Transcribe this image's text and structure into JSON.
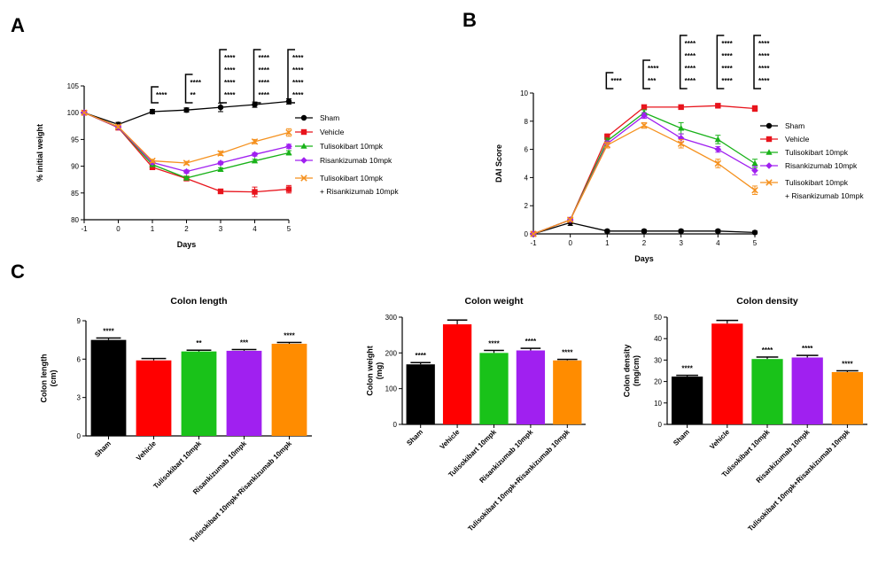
{
  "panels": {
    "a": "A",
    "b": "B",
    "c": "C"
  },
  "colors": {
    "Sham": "#000000",
    "Vehicle": "#e8141c",
    "Tulisokibart": "#19b219",
    "Risankizumab": "#a020f0",
    "Combo": "#f5911e"
  },
  "chart_data": [
    {
      "type": "line",
      "panel": "A",
      "xlabel": "Days",
      "ylabel": "% initial weight",
      "xlim": [
        -1,
        5
      ],
      "ylim": [
        80,
        105
      ],
      "xticks": [
        -1,
        0,
        1,
        2,
        3,
        4,
        5
      ],
      "yticks": [
        80,
        85,
        90,
        95,
        100,
        105
      ],
      "legend_position": "right",
      "x": [
        -1,
        0,
        1,
        2,
        3,
        4,
        5
      ],
      "series": [
        {
          "name": "Sham",
          "color": "#000000",
          "marker": "circle",
          "values": [
            100,
            97.8,
            100.2,
            100.5,
            101,
            101.5,
            102.1
          ],
          "errors": [
            0,
            0.4,
            0.4,
            0.4,
            0.8,
            0.5,
            0.5
          ]
        },
        {
          "name": "Vehicle",
          "color": "#e8141c",
          "marker": "square",
          "values": [
            100,
            97.2,
            89.8,
            87.7,
            85.3,
            85.2,
            85.7
          ],
          "errors": [
            0,
            0.3,
            0.3,
            0.3,
            0.4,
            0.9,
            0.7
          ]
        },
        {
          "name": "Tulisokibart 10mpk",
          "color": "#19b219",
          "marker": "triangle",
          "values": [
            100,
            97.3,
            90.3,
            87.8,
            89.4,
            91,
            92.5
          ],
          "errors": [
            0,
            0.3,
            0.3,
            0.3,
            0.3,
            0.3,
            0.4
          ]
        },
        {
          "name": "Risankizumab 10mpk",
          "color": "#a020f0",
          "marker": "diamond",
          "values": [
            100,
            97.3,
            90.7,
            89,
            90.6,
            92.2,
            93.7
          ],
          "errors": [
            0,
            0.3,
            0.3,
            0.3,
            0.3,
            0.3,
            0.4
          ]
        },
        {
          "name": "Tulisokibart 10mpk\n+ Risankizumab 10mpk",
          "color": "#f5911e",
          "marker": "cross",
          "values": [
            100,
            97.4,
            91,
            90.6,
            92.4,
            94.6,
            96.3
          ],
          "errors": [
            0,
            0.3,
            0.3,
            0.3,
            0.4,
            0.4,
            0.7
          ]
        }
      ],
      "significance": [
        {
          "day": 1,
          "marks": [
            {
              "text": "****",
              "color": "#000000"
            }
          ]
        },
        {
          "day": 2,
          "marks": [
            {
              "text": "****",
              "color": "#000000"
            },
            {
              "text": "**",
              "color": "#f5911e"
            }
          ]
        },
        {
          "day": 3,
          "marks": [
            {
              "text": "****",
              "color": "#000000"
            },
            {
              "text": "****",
              "color": "#19b219"
            },
            {
              "text": "****",
              "color": "#a020f0"
            },
            {
              "text": "****",
              "color": "#f5911e"
            }
          ]
        },
        {
          "day": 4,
          "marks": [
            {
              "text": "****",
              "color": "#000000"
            },
            {
              "text": "****",
              "color": "#19b219"
            },
            {
              "text": "****",
              "color": "#a020f0"
            },
            {
              "text": "****",
              "color": "#f5911e"
            }
          ]
        },
        {
          "day": 5,
          "marks": [
            {
              "text": "****",
              "color": "#000000"
            },
            {
              "text": "****",
              "color": "#19b219"
            },
            {
              "text": "****",
              "color": "#a020f0"
            },
            {
              "text": "****",
              "color": "#f5911e"
            }
          ]
        }
      ]
    },
    {
      "type": "line",
      "panel": "B",
      "xlabel": "Days",
      "ylabel": "DAI Score",
      "xlim": [
        -1,
        5
      ],
      "ylim": [
        0,
        10
      ],
      "xticks": [
        -1,
        0,
        1,
        2,
        3,
        4,
        5
      ],
      "yticks": [
        0,
        2,
        4,
        6,
        8,
        10
      ],
      "legend_position": "right",
      "x": [
        -1,
        0,
        1,
        2,
        3,
        4,
        5
      ],
      "series": [
        {
          "name": "Sham",
          "color": "#000000",
          "marker": "circle",
          "values": [
            0,
            0.8,
            0.2,
            0.2,
            0.2,
            0.2,
            0.1
          ],
          "errors": [
            0,
            0.2,
            0.1,
            0.1,
            0.1,
            0.1,
            0.1
          ]
        },
        {
          "name": "Vehicle",
          "color": "#e8141c",
          "marker": "square",
          "values": [
            0,
            1,
            6.9,
            9,
            9,
            9.1,
            8.9
          ],
          "errors": [
            0,
            0.1,
            0.2,
            0.1,
            0.1,
            0.1,
            0.2
          ]
        },
        {
          "name": "Tulisokibart 10mpk",
          "color": "#19b219",
          "marker": "triangle",
          "values": [
            0,
            1,
            6.6,
            8.6,
            7.5,
            6.7,
            5
          ],
          "errors": [
            0,
            0.1,
            0.2,
            0.2,
            0.4,
            0.3,
            0.3
          ]
        },
        {
          "name": "Risankizumab 10mpk",
          "color": "#a020f0",
          "marker": "diamond",
          "values": [
            0,
            1,
            6.4,
            8.4,
            6.8,
            6,
            4.5
          ],
          "errors": [
            0,
            0.1,
            0.2,
            0.2,
            0.3,
            0.2,
            0.3
          ]
        },
        {
          "name": "Tulisokibart 10mpk\n+ Risankizumab 10mpk",
          "color": "#f5911e",
          "marker": "cross",
          "values": [
            0,
            1,
            6.3,
            7.7,
            6.4,
            5,
            3.1
          ],
          "errors": [
            0,
            0.1,
            0.2,
            0.2,
            0.3,
            0.3,
            0.3
          ]
        }
      ],
      "significance": [
        {
          "day": 1,
          "marks": [
            {
              "text": "****",
              "color": "#000000"
            }
          ]
        },
        {
          "day": 2,
          "marks": [
            {
              "text": "****",
              "color": "#000000"
            },
            {
              "text": "***",
              "color": "#f5911e"
            }
          ]
        },
        {
          "day": 3,
          "marks": [
            {
              "text": "****",
              "color": "#000000"
            },
            {
              "text": "****",
              "color": "#19b219"
            },
            {
              "text": "****",
              "color": "#a020f0"
            },
            {
              "text": "****",
              "color": "#f5911e"
            }
          ]
        },
        {
          "day": 4,
          "marks": [
            {
              "text": "****",
              "color": "#000000"
            },
            {
              "text": "****",
              "color": "#19b219"
            },
            {
              "text": "****",
              "color": "#a020f0"
            },
            {
              "text": "****",
              "color": "#f5911e"
            }
          ]
        },
        {
          "day": 5,
          "marks": [
            {
              "text": "****",
              "color": "#000000"
            },
            {
              "text": "****",
              "color": "#19b219"
            },
            {
              "text": "****",
              "color": "#a020f0"
            },
            {
              "text": "****",
              "color": "#f5911e"
            }
          ]
        }
      ]
    },
    {
      "type": "bar",
      "panel": "C",
      "title": "Colon length",
      "ylabel": "Colon length\n(cm)",
      "ylim": [
        0,
        9
      ],
      "yticks": [
        0,
        3,
        6,
        9
      ],
      "categories": [
        "Sham",
        "Vehicle",
        "Tulisokibart 10mpk",
        "Risankizumab 10mpk",
        "Tulisokibart 10mpk+Risankizumab 10mpk"
      ],
      "values": [
        7.5,
        5.9,
        6.6,
        6.65,
        7.2
      ],
      "errors": [
        0.15,
        0.15,
        0.1,
        0.1,
        0.1
      ],
      "labels": [
        "****",
        "",
        "**",
        "***",
        "****"
      ],
      "colors": [
        "#000000",
        "#ff0000",
        "#19c219",
        "#a020f0",
        "#ff8c00"
      ]
    },
    {
      "type": "bar",
      "panel": "C",
      "title": "Colon weight",
      "ylabel": "Colon weight\n(mg)",
      "ylim": [
        0,
        300
      ],
      "yticks": [
        0,
        100,
        200,
        300
      ],
      "categories": [
        "Sham",
        "Vehicle",
        "Tulisokibart 10mpk",
        "Risankizumab 10mpk",
        "Tulisokibart 10mpk+Risankizumab 10mpk"
      ],
      "values": [
        168,
        280,
        200,
        207,
        179
      ],
      "errors": [
        5,
        12,
        7,
        6,
        3
      ],
      "labels": [
        "****",
        "",
        "****",
        "****",
        "****"
      ],
      "colors": [
        "#000000",
        "#ff0000",
        "#19c219",
        "#a020f0",
        "#ff8c00"
      ]
    },
    {
      "type": "bar",
      "panel": "C",
      "title": "Colon density",
      "ylabel": "Colon density\n(mg/cm)",
      "ylim": [
        0,
        50
      ],
      "yticks": [
        0,
        10,
        20,
        30,
        40,
        50
      ],
      "categories": [
        "Sham",
        "Vehicle",
        "Tulisokibart 10mpk",
        "Risankizumab 10mpk",
        "Tulisokibart 10mpk+Risankizumab 10mpk"
      ],
      "values": [
        22.3,
        47,
        30.5,
        31.2,
        24.4
      ],
      "errors": [
        0.6,
        1.5,
        0.9,
        1,
        0.6
      ],
      "labels": [
        "****",
        "",
        "****",
        "****",
        "****"
      ],
      "colors": [
        "#000000",
        "#ff0000",
        "#19c219",
        "#a020f0",
        "#ff8c00"
      ]
    }
  ]
}
